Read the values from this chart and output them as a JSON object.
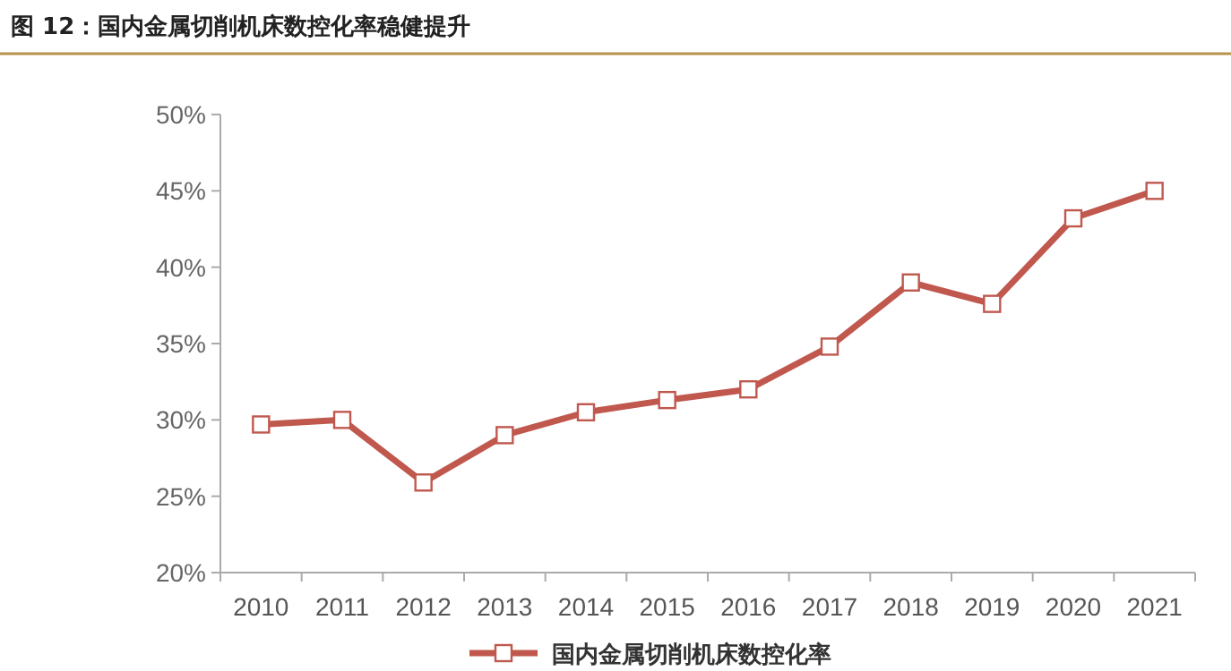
{
  "chart_data": {
    "type": "line",
    "title": "图 12：国内金属切削机床数控化率稳健提升",
    "categories": [
      "2010",
      "2011",
      "2012",
      "2013",
      "2014",
      "2015",
      "2016",
      "2017",
      "2018",
      "2019",
      "2020",
      "2021"
    ],
    "series": [
      {
        "name": "国内金属切削机床数控化率",
        "color": "#c0584e",
        "values": [
          29.7,
          30.0,
          25.9,
          29.0,
          30.5,
          31.3,
          32.0,
          34.8,
          39.0,
          37.6,
          43.2,
          45.0
        ]
      }
    ],
    "ylim": [
      20,
      50
    ],
    "yticks": [
      {
        "value": 20,
        "label": "20%"
      },
      {
        "value": 25,
        "label": "25%"
      },
      {
        "value": 30,
        "label": "30%"
      },
      {
        "value": 35,
        "label": "35%"
      },
      {
        "value": 40,
        "label": "40%"
      },
      {
        "value": 45,
        "label": "45%"
      },
      {
        "value": 50,
        "label": "50%"
      }
    ],
    "marker": "square",
    "line_style": "solid",
    "grid": false,
    "legend": "bottom"
  }
}
